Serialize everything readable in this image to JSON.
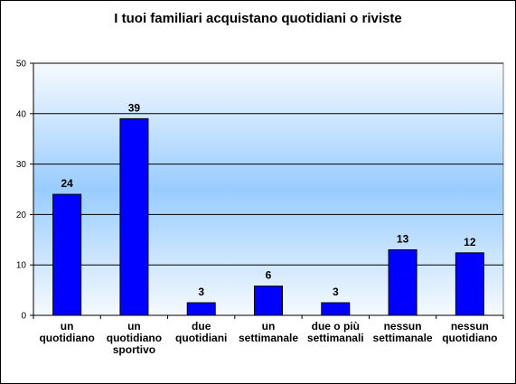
{
  "chart_data": {
    "type": "bar",
    "title": "I tuoi familiari acquistano quotidiani o riviste",
    "categories": [
      [
        "un",
        "quotidiano"
      ],
      [
        "un",
        "quotidiano",
        "sportivo"
      ],
      [
        "due",
        "quotidiani"
      ],
      [
        "un",
        "settimanale"
      ],
      [
        "due o più",
        "settimanali"
      ],
      [
        "nessun",
        "settimanale"
      ],
      [
        "nessun",
        "quotidiano"
      ]
    ],
    "values": [
      24,
      39,
      3,
      6,
      3,
      13,
      12
    ],
    "data_labels": [
      "24",
      "39",
      "3",
      "6",
      "3",
      "13",
      "12"
    ],
    "heights": [
      24,
      39,
      2.5,
      5.8,
      2.5,
      13,
      12.4
    ],
    "y_ticks": [
      "0",
      "10",
      "20",
      "30",
      "40",
      "50"
    ],
    "ylim": [
      0,
      50
    ],
    "xlabel": "",
    "ylabel": "",
    "grid": true,
    "legend": "none",
    "colors": {
      "bar": "#0000ff",
      "bar_stroke": "#000000",
      "plot_gradient_edge": "#f6fafe",
      "plot_gradient_center": "#99ccff",
      "grid": "#000000"
    }
  }
}
